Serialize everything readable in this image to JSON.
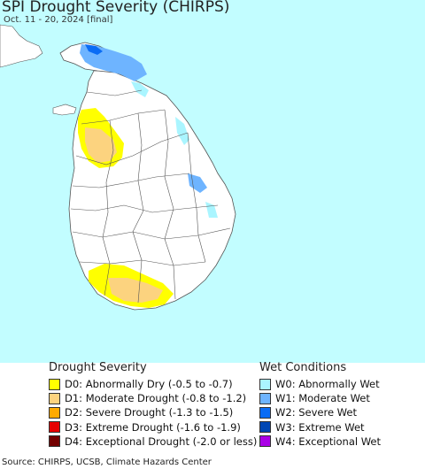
{
  "header": {
    "title": "SPI Drought Severity (CHIRPS)",
    "subtitle": "Oct. 11 - 20, 2024 [final]"
  },
  "map": {
    "ocean_color": "#c2fdff",
    "land_color": "#ffffff",
    "boundary_color": "#555555"
  },
  "legend": {
    "drought": {
      "heading": "Drought Severity",
      "items": [
        {
          "label": "D0: Abnormally Dry (-0.5 to -0.7)",
          "color": "#ffff00"
        },
        {
          "label": "D1: Moderate Drought (-0.8 to -1.2)",
          "color": "#fcd37f"
        },
        {
          "label": "D2: Severe Drought (-1.3 to -1.5)",
          "color": "#ffaa00"
        },
        {
          "label": "D3: Extreme Drought (-1.6 to -1.9)",
          "color": "#e60000"
        },
        {
          "label": "D4: Exceptional Drought (-2.0 or less)",
          "color": "#730000"
        }
      ]
    },
    "wet": {
      "heading": "Wet Conditions",
      "items": [
        {
          "label": "W0: Abnormally Wet",
          "color": "#aaf5ff"
        },
        {
          "label": "W1: Moderate Wet",
          "color": "#6eb4ff"
        },
        {
          "label": "W2: Severe Wet",
          "color": "#0a6cf5"
        },
        {
          "label": "W3: Extreme Wet",
          "color": "#0046b4"
        },
        {
          "label": "W4: Exceptional Wet",
          "color": "#aa00e6"
        }
      ]
    }
  },
  "footer": {
    "source": "Source: CHIRPS, UCSB, Climate Hazards Center"
  }
}
